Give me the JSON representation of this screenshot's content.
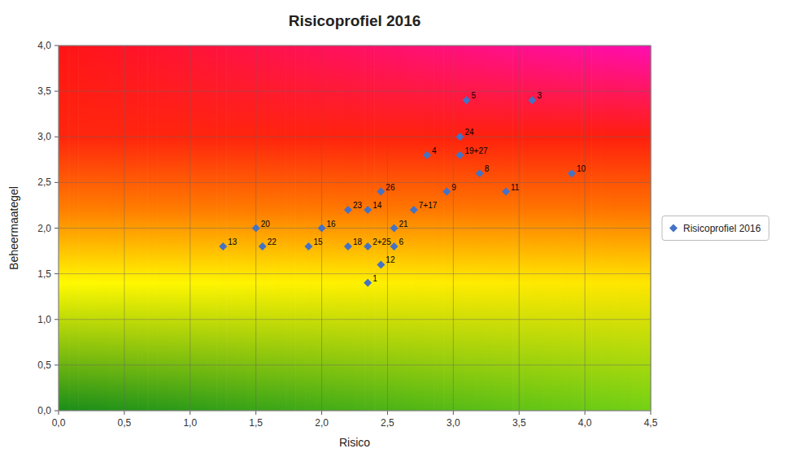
{
  "chart_data": {
    "type": "scatter",
    "title": "Risicoprofiel 2016",
    "x_label": "Risico",
    "y_label": "Beheermaategel",
    "xlim": [
      0.0,
      4.5
    ],
    "ylim": [
      0.0,
      4.0
    ],
    "xticks": [
      {
        "value": 0.0,
        "label": "0,0"
      },
      {
        "value": 0.5,
        "label": "0,5"
      },
      {
        "value": 1.0,
        "label": "1,0"
      },
      {
        "value": 1.5,
        "label": "1,5"
      },
      {
        "value": 2.0,
        "label": "2,0"
      },
      {
        "value": 2.5,
        "label": "2,5"
      },
      {
        "value": 3.0,
        "label": "3,0"
      },
      {
        "value": 3.5,
        "label": "3,5"
      },
      {
        "value": 4.0,
        "label": "4,0"
      },
      {
        "value": 4.5,
        "label": "4,5"
      }
    ],
    "yticks": [
      {
        "value": 0.0,
        "label": "0,0"
      },
      {
        "value": 0.5,
        "label": "0,5"
      },
      {
        "value": 1.0,
        "label": "1,0"
      },
      {
        "value": 1.5,
        "label": "1,5"
      },
      {
        "value": 2.0,
        "label": "2,0"
      },
      {
        "value": 2.5,
        "label": "2,5"
      },
      {
        "value": 3.0,
        "label": "3,0"
      },
      {
        "value": 3.5,
        "label": "3,5"
      },
      {
        "value": 4.0,
        "label": "4,0"
      }
    ],
    "grid": true,
    "legend": "right",
    "series": [
      {
        "name": "Risicoprofiel 2016",
        "color": "#4472C4",
        "marker": "diamond",
        "x": [
          3.1,
          3.6,
          3.05,
          2.8,
          3.05,
          3.2,
          3.9,
          2.45,
          2.95,
          3.4,
          2.2,
          2.35,
          2.7,
          1.5,
          2.0,
          2.55,
          1.25,
          1.55,
          1.9,
          2.2,
          2.35,
          2.55,
          2.45,
          2.35
        ],
        "values": [
          3.4,
          3.4,
          3.0,
          2.8,
          2.8,
          2.6,
          2.6,
          2.4,
          2.4,
          2.4,
          2.2,
          2.2,
          2.2,
          2.0,
          2.0,
          2.0,
          1.8,
          1.8,
          1.8,
          1.8,
          1.8,
          1.8,
          1.6,
          1.4
        ],
        "labels": [
          "5",
          "3",
          "24",
          "4",
          "19+27",
          "8",
          "10",
          "26",
          "9",
          "11",
          "23",
          "14",
          "7+17",
          "20",
          "16",
          "21",
          "13",
          "22",
          "15",
          "18",
          "2+25",
          "6",
          "12",
          "1"
        ]
      }
    ]
  }
}
